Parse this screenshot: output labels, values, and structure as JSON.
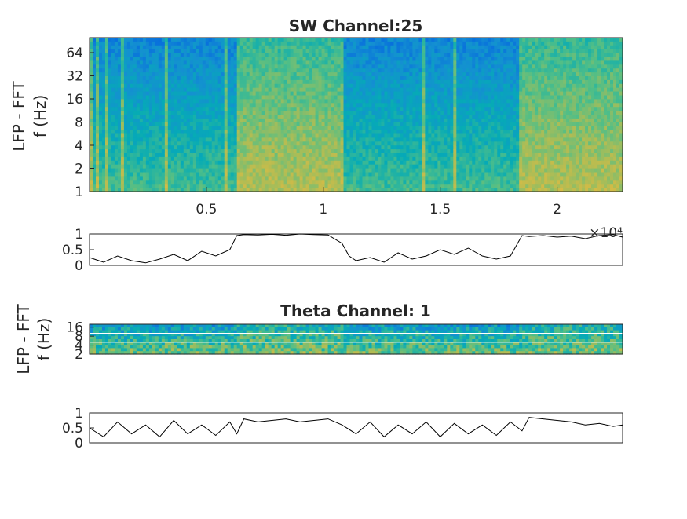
{
  "chart_data": [
    {
      "type": "heatmap",
      "title": "SW Channel:25",
      "ylabel": "LFP - FFT\nf (Hz)",
      "ylabel_lines": [
        "LFP - FFT",
        "f (Hz)"
      ],
      "yscale": "log2",
      "ylim": [
        1,
        100
      ],
      "yticks": [
        1,
        2,
        4,
        8,
        16,
        32,
        64
      ],
      "ytick_labels": [
        "1",
        "2",
        "4",
        "8",
        "16",
        "32",
        "64"
      ],
      "xlim": [
        0,
        22800
      ],
      "xticks": [
        5000,
        10000,
        15000,
        20000
      ],
      "xtick_labels": [
        "0.5",
        "1",
        "1.5",
        "2"
      ],
      "x_exponent_label": "×10⁴",
      "colormap": "parula",
      "state_segments": [
        {
          "start": 0,
          "end": 6300,
          "level": 0.2
        },
        {
          "start": 6300,
          "end": 10800,
          "level": 0.9
        },
        {
          "start": 10800,
          "end": 18500,
          "level": 0.2
        },
        {
          "start": 18500,
          "end": 22800,
          "level": 0.85
        }
      ]
    },
    {
      "type": "line",
      "title": "",
      "xlim": [
        0,
        22800
      ],
      "ylim": [
        0,
        1
      ],
      "yticks": [
        0,
        0.5,
        1
      ],
      "ytick_labels": [
        "0",
        "0.5",
        "1"
      ],
      "x_exponent_label": "×10⁴",
      "x": [
        0,
        600,
        1200,
        1800,
        2400,
        3000,
        3600,
        4200,
        4800,
        5400,
        6000,
        6300,
        6600,
        7200,
        7800,
        8400,
        9000,
        9600,
        10200,
        10800,
        11100,
        11400,
        12000,
        12600,
        13200,
        13800,
        14400,
        15000,
        15600,
        16200,
        16800,
        17400,
        18000,
        18500,
        18800,
        19400,
        20000,
        20600,
        21200,
        21800,
        22400,
        22800
      ],
      "values": [
        0.25,
        0.1,
        0.3,
        0.15,
        0.08,
        0.2,
        0.35,
        0.15,
        0.45,
        0.3,
        0.5,
        0.95,
        0.98,
        0.97,
        0.99,
        0.96,
        1.0,
        0.98,
        0.97,
        0.7,
        0.3,
        0.15,
        0.25,
        0.1,
        0.4,
        0.2,
        0.3,
        0.5,
        0.35,
        0.55,
        0.3,
        0.2,
        0.3,
        0.95,
        0.92,
        0.95,
        0.9,
        0.93,
        0.85,
        0.95,
        0.98,
        0.9
      ]
    },
    {
      "type": "heatmap",
      "title": "Theta Channel: 1",
      "ylabel": "LFP - FFT\nf (Hz)",
      "ylabel_lines": [
        "LFP - FFT",
        "f (Hz)"
      ],
      "yscale": "log2",
      "ylim": [
        2,
        20
      ],
      "yticks": [
        2,
        4,
        8,
        16
      ],
      "ytick_labels": [
        "2",
        "4",
        "8",
        "16"
      ],
      "xlim": [
        0,
        22800
      ],
      "colormap": "parula",
      "reference_lines_hz": [
        5,
        10
      ]
    },
    {
      "type": "line",
      "title": "",
      "xlim": [
        0,
        22800
      ],
      "ylim": [
        0,
        1
      ],
      "yticks": [
        0,
        0.5,
        1
      ],
      "ytick_labels": [
        "0",
        "0.5",
        "1"
      ],
      "x": [
        0,
        600,
        1200,
        1800,
        2400,
        3000,
        3600,
        4200,
        4800,
        5400,
        6000,
        6300,
        6600,
        7200,
        7800,
        8400,
        9000,
        9600,
        10200,
        10800,
        11400,
        12000,
        12600,
        13200,
        13800,
        14400,
        15000,
        15600,
        16200,
        16800,
        17400,
        18000,
        18500,
        18800,
        19400,
        20000,
        20600,
        21200,
        21800,
        22400,
        22800
      ],
      "values": [
        0.5,
        0.2,
        0.7,
        0.3,
        0.6,
        0.2,
        0.75,
        0.3,
        0.6,
        0.25,
        0.7,
        0.3,
        0.8,
        0.7,
        0.75,
        0.8,
        0.7,
        0.75,
        0.8,
        0.6,
        0.3,
        0.7,
        0.2,
        0.6,
        0.3,
        0.7,
        0.2,
        0.65,
        0.3,
        0.6,
        0.25,
        0.7,
        0.4,
        0.85,
        0.8,
        0.75,
        0.7,
        0.6,
        0.65,
        0.55,
        0.6
      ]
    }
  ]
}
